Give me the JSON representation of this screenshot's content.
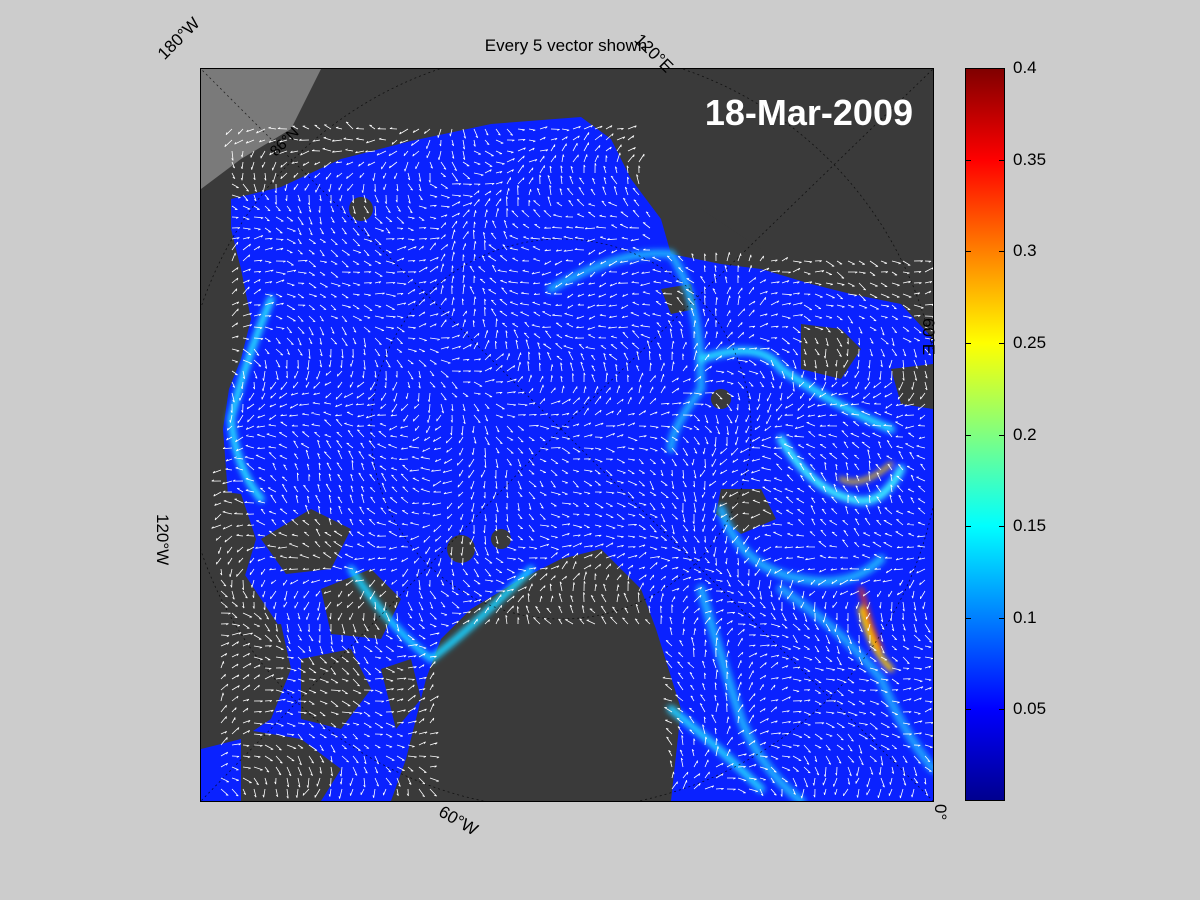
{
  "title": "Every 5 vector shown",
  "date": "18-Mar-2009",
  "map_labels": {
    "top_left": "180°W",
    "top_right": "120°E",
    "right": "60°E",
    "left": "120°W",
    "bottom": "60°W",
    "bottom_right": "0°",
    "lat_ring": "86°N"
  },
  "colorbar": {
    "min": 0,
    "max": 0.4,
    "ticks": [
      "0.4",
      "0.35",
      "0.3",
      "0.25",
      "0.2",
      "0.15",
      "0.1",
      "0.05"
    ],
    "tick_values": [
      0.4,
      0.35,
      0.3,
      0.25,
      0.2,
      0.15,
      0.1,
      0.05
    ],
    "colormap": "jet"
  },
  "colors": {
    "background": "#cccccc",
    "land": "#3a3a3a",
    "ice_low": "#0a22ff",
    "vectors": "#ffffff"
  }
}
